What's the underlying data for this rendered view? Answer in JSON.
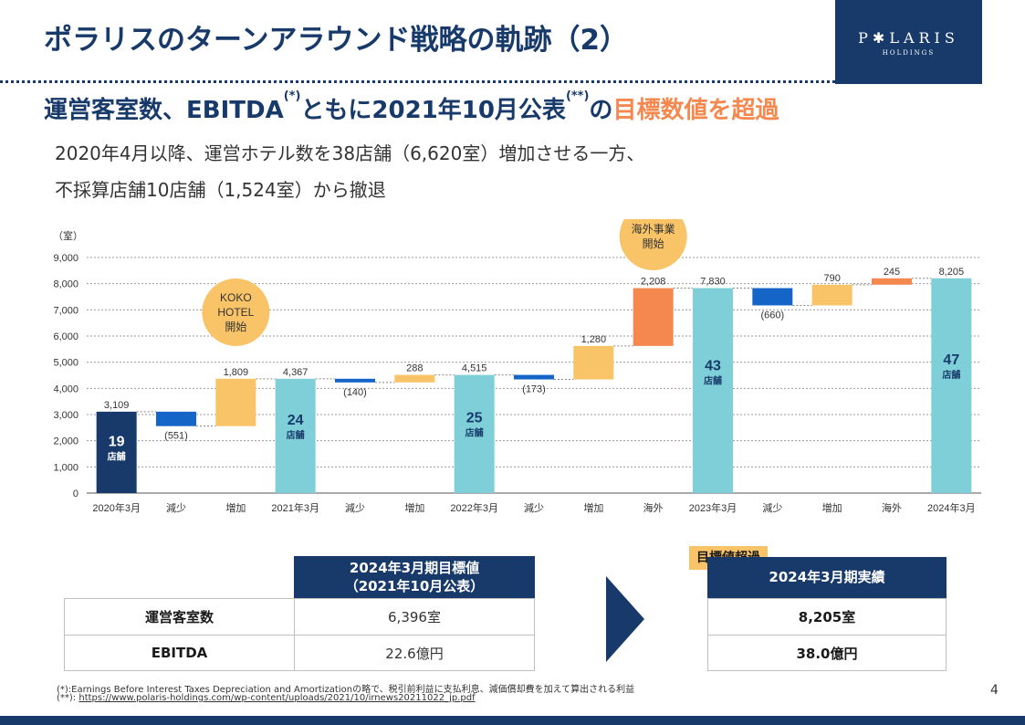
{
  "title": "ポラリスのターンアラウンド戦略の軌跡（2）",
  "logo": {
    "name": "P✱LARIS",
    "sub": "HOLDINGS"
  },
  "subtitle": {
    "part1": "運営客室数、EBITDA",
    "sup1": "(*)",
    "part2": "ともに2021年10月公表",
    "sup2": "(**)",
    "part3": "の",
    "highlight": "目標数値を超過"
  },
  "body": {
    "line1": "2020年4月以降、運営ホテル数を38店舗（6,620室）増加させる一方、",
    "line2": "不採算店舗10店舗（1,524室）から撤退"
  },
  "chart_data": {
    "type": "waterfall",
    "ylabel": "（室）",
    "ylim": [
      0,
      9000
    ],
    "yticks": [
      0,
      1000,
      2000,
      3000,
      4000,
      5000,
      6000,
      7000,
      8000,
      9000
    ],
    "ytick_labels": [
      "0",
      "1,000",
      "2,000",
      "3,000",
      "4,000",
      "5,000",
      "6,000",
      "7,000",
      "8,000",
      "9,000"
    ],
    "categories": [
      "2020年3月",
      "減少",
      "増加",
      "2021年3月",
      "減少",
      "増加",
      "2022年3月",
      "減少",
      "増加",
      "海外",
      "2023年3月",
      "減少",
      "増加",
      "海外",
      "2024年3月"
    ],
    "bars": [
      {
        "kind": "total_dark",
        "base": 0,
        "top": 3109,
        "label": "3,109",
        "stores": "19",
        "stores_unit": "店舗"
      },
      {
        "kind": "decrease",
        "base": 2558,
        "top": 3109,
        "label": "(551)"
      },
      {
        "kind": "increase",
        "base": 2558,
        "top": 4367,
        "label": "1,809"
      },
      {
        "kind": "total",
        "base": 0,
        "top": 4367,
        "label": "4,367",
        "stores": "24",
        "stores_unit": "店舗"
      },
      {
        "kind": "decrease",
        "base": 4227,
        "top": 4367,
        "label": "(140)"
      },
      {
        "kind": "increase",
        "base": 4227,
        "top": 4515,
        "label": "288"
      },
      {
        "kind": "total",
        "base": 0,
        "top": 4515,
        "label": "4,515",
        "stores": "25",
        "stores_unit": "店舗"
      },
      {
        "kind": "decrease",
        "base": 4342,
        "top": 4515,
        "label": "(173)"
      },
      {
        "kind": "increase",
        "base": 4342,
        "top": 5622,
        "label": "1,280"
      },
      {
        "kind": "overseas",
        "base": 5622,
        "top": 7830,
        "label": "2,208"
      },
      {
        "kind": "total",
        "base": 0,
        "top": 7830,
        "label": "7,830",
        "stores": "43",
        "stores_unit": "店舗"
      },
      {
        "kind": "decrease",
        "base": 7170,
        "top": 7830,
        "label": "(660)"
      },
      {
        "kind": "increase",
        "base": 7170,
        "top": 7960,
        "label": "790"
      },
      {
        "kind": "overseas",
        "base": 7960,
        "top": 8205,
        "label": "245"
      },
      {
        "kind": "total",
        "base": 0,
        "top": 8205,
        "label": "8,205",
        "stores": "47",
        "stores_unit": "店舗"
      }
    ],
    "annotations": [
      {
        "lines": [
          "KOKO",
          "HOTEL",
          "開始"
        ],
        "category_index": 2
      },
      {
        "lines": [
          "海外事業",
          "開始"
        ],
        "category_index": 9
      }
    ],
    "colors": {
      "total_dark": "#173a6b",
      "total": "#7ecfd8",
      "decrease": "#1565c8",
      "increase": "#f9c468",
      "overseas": "#f5884f",
      "bubble": "#f9c468"
    }
  },
  "target_table": {
    "header_line1": "2024年3月期目標値",
    "header_line2": "（2021年10月公表）",
    "rows": [
      {
        "label": "運営客室数",
        "value": "6,396室"
      },
      {
        "label": "EBITDA",
        "value": "22.6億円"
      }
    ]
  },
  "actual_table": {
    "badge": "目標値超過",
    "header": "2024年3月期実績",
    "values": [
      "8,205室",
      "38.0億円"
    ]
  },
  "footnotes": {
    "fn1": "(*):Earnings Before Interest Taxes Depreciation and Amortizationの略で、税引前利益に支払利息、減価償却費を加えて算出される利益",
    "fn2_prefix": "(**): ",
    "fn2_link": "https://www.polaris-holdings.com/wp-content/uploads/2021/10/irnews20211022_jp.pdf"
  },
  "page_number": "4"
}
